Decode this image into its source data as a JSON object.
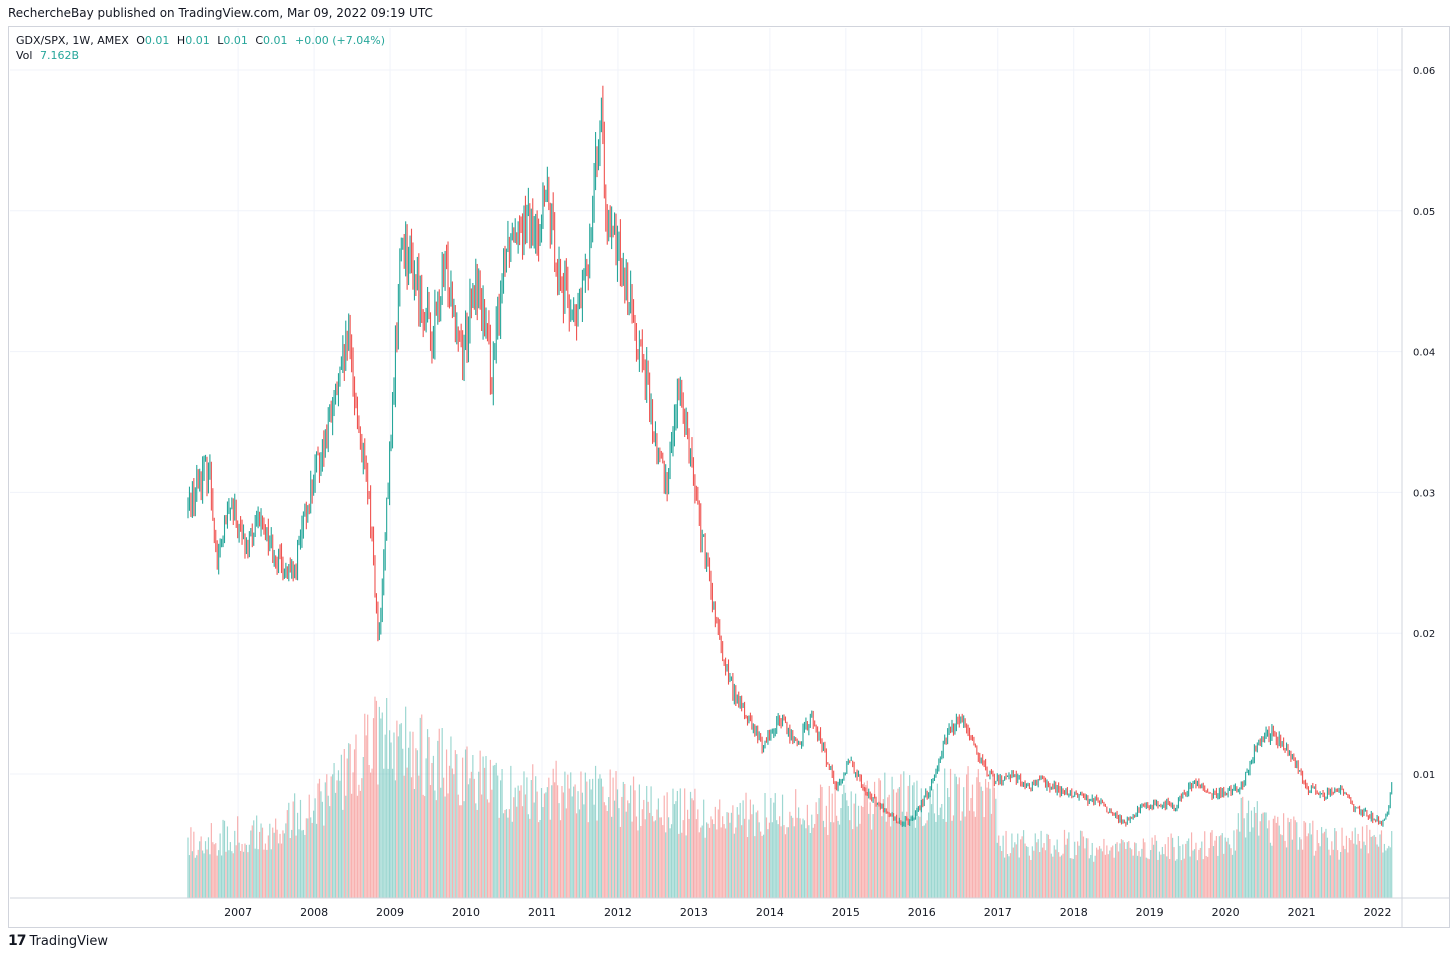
{
  "header": {
    "published_text": "RechercheBay published on TradingView.com, Mar 09, 2022 09:19 UTC"
  },
  "legend": {
    "symbol": "GDX/SPX, 1W, AMEX",
    "open_label": "O",
    "open_value": "0.01",
    "high_label": "H",
    "high_value": "0.01",
    "low_label": "L",
    "low_value": "0.01",
    "close_label": "C",
    "close_value": "0.01",
    "change": "+0.00 (+7.04%)",
    "vol_label": "Vol",
    "vol_value": "7.162B"
  },
  "footer": {
    "brand": "TradingView",
    "logo_icon": "tradingview-logo-icon"
  },
  "colors": {
    "up": "#26a69a",
    "down": "#ef5350",
    "grid": "#f0f3fa",
    "axis_text": "#131722"
  },
  "chart_data": {
    "type": "candlestick",
    "title": "GDX/SPX",
    "interval": "1W",
    "exchange": "AMEX",
    "ylim": [
      0.0,
      0.063
    ],
    "y_ticks": [
      "0.01",
      "0.02",
      "0.03",
      "0.04",
      "0.05",
      "0.06"
    ],
    "y_tick_values": [
      0.01,
      0.02,
      0.03,
      0.04,
      0.05,
      0.06
    ],
    "x_ticks": [
      "2007",
      "2008",
      "2009",
      "2010",
      "2011",
      "2012",
      "2013",
      "2014",
      "2015",
      "2016",
      "2017",
      "2018",
      "2019",
      "2020",
      "2021",
      "2022"
    ],
    "x_range": [
      2006.34,
      2022.19
    ],
    "grid": true,
    "legend_position": "top-left",
    "price_series_anchors": [
      [
        2006.34,
        0.029
      ],
      [
        2006.5,
        0.031
      ],
      [
        2006.62,
        0.032
      ],
      [
        2006.72,
        0.025
      ],
      [
        2006.9,
        0.029
      ],
      [
        2007.1,
        0.026
      ],
      [
        2007.3,
        0.028
      ],
      [
        2007.55,
        0.025
      ],
      [
        2007.72,
        0.024
      ],
      [
        2007.95,
        0.03
      ],
      [
        2008.15,
        0.034
      ],
      [
        2008.35,
        0.038
      ],
      [
        2008.45,
        0.041
      ],
      [
        2008.6,
        0.034
      ],
      [
        2008.75,
        0.028
      ],
      [
        2008.85,
        0.019
      ],
      [
        2008.92,
        0.025
      ],
      [
        2009.05,
        0.038
      ],
      [
        2009.15,
        0.048
      ],
      [
        2009.35,
        0.045
      ],
      [
        2009.55,
        0.041
      ],
      [
        2009.75,
        0.046
      ],
      [
        2009.95,
        0.04
      ],
      [
        2010.15,
        0.045
      ],
      [
        2010.35,
        0.038
      ],
      [
        2010.5,
        0.047
      ],
      [
        2010.7,
        0.05
      ],
      [
        2010.9,
        0.048
      ],
      [
        2011.05,
        0.051
      ],
      [
        2011.25,
        0.045
      ],
      [
        2011.45,
        0.042
      ],
      [
        2011.6,
        0.046
      ],
      [
        2011.7,
        0.054
      ],
      [
        2011.78,
        0.056
      ],
      [
        2011.88,
        0.048
      ],
      [
        2012.05,
        0.047
      ],
      [
        2012.2,
        0.042
      ],
      [
        2012.35,
        0.039
      ],
      [
        2012.5,
        0.033
      ],
      [
        2012.65,
        0.031
      ],
      [
        2012.75,
        0.036
      ],
      [
        2012.85,
        0.037
      ],
      [
        2013.0,
        0.031
      ],
      [
        2013.1,
        0.027
      ],
      [
        2013.25,
        0.022
      ],
      [
        2013.35,
        0.019
      ],
      [
        2013.5,
        0.016
      ],
      [
        2013.7,
        0.014
      ],
      [
        2013.9,
        0.012
      ],
      [
        2014.15,
        0.014
      ],
      [
        2014.35,
        0.012
      ],
      [
        2014.55,
        0.014
      ],
      [
        2014.75,
        0.011
      ],
      [
        2014.9,
        0.009
      ],
      [
        2015.05,
        0.011
      ],
      [
        2015.3,
        0.0085
      ],
      [
        2015.5,
        0.0075
      ],
      [
        2015.7,
        0.0065
      ],
      [
        2015.9,
        0.0068
      ],
      [
        2016.1,
        0.009
      ],
      [
        2016.35,
        0.013
      ],
      [
        2016.55,
        0.014
      ],
      [
        2016.7,
        0.012
      ],
      [
        2016.85,
        0.01
      ],
      [
        2017.0,
        0.0095
      ],
      [
        2017.2,
        0.01
      ],
      [
        2017.4,
        0.009
      ],
      [
        2017.6,
        0.0095
      ],
      [
        2017.8,
        0.0088
      ],
      [
        2018.0,
        0.0085
      ],
      [
        2018.25,
        0.0082
      ],
      [
        2018.45,
        0.0075
      ],
      [
        2018.65,
        0.0065
      ],
      [
        2018.85,
        0.0075
      ],
      [
        2019.1,
        0.008
      ],
      [
        2019.35,
        0.0078
      ],
      [
        2019.6,
        0.0095
      ],
      [
        2019.8,
        0.0085
      ],
      [
        2020.0,
        0.0088
      ],
      [
        2020.2,
        0.009
      ],
      [
        2020.4,
        0.012
      ],
      [
        2020.6,
        0.013
      ],
      [
        2020.75,
        0.012
      ],
      [
        2020.95,
        0.0105
      ],
      [
        2021.1,
        0.009
      ],
      [
        2021.3,
        0.0085
      ],
      [
        2021.5,
        0.009
      ],
      [
        2021.7,
        0.0075
      ],
      [
        2021.9,
        0.007
      ],
      [
        2022.05,
        0.0065
      ],
      [
        2022.12,
        0.0072
      ],
      [
        2022.19,
        0.0092
      ]
    ],
    "volume_profile_anchors": [
      [
        2006.34,
        0.2
      ],
      [
        2007.5,
        0.26
      ],
      [
        2008.3,
        0.4
      ],
      [
        2008.8,
        0.6
      ],
      [
        2009.3,
        0.55
      ],
      [
        2010.5,
        0.38
      ],
      [
        2011.5,
        0.4
      ],
      [
        2012.5,
        0.34
      ],
      [
        2013.5,
        0.3
      ],
      [
        2014.5,
        0.32
      ],
      [
        2015.5,
        0.36
      ],
      [
        2016.5,
        0.38
      ],
      [
        2016.95,
        0.38
      ],
      [
        2017.0,
        0.2
      ],
      [
        2018.5,
        0.19
      ],
      [
        2019.5,
        0.19
      ],
      [
        2020.1,
        0.2
      ],
      [
        2020.2,
        0.3
      ],
      [
        2020.8,
        0.25
      ],
      [
        2021.5,
        0.2
      ],
      [
        2022.19,
        0.22
      ]
    ]
  }
}
